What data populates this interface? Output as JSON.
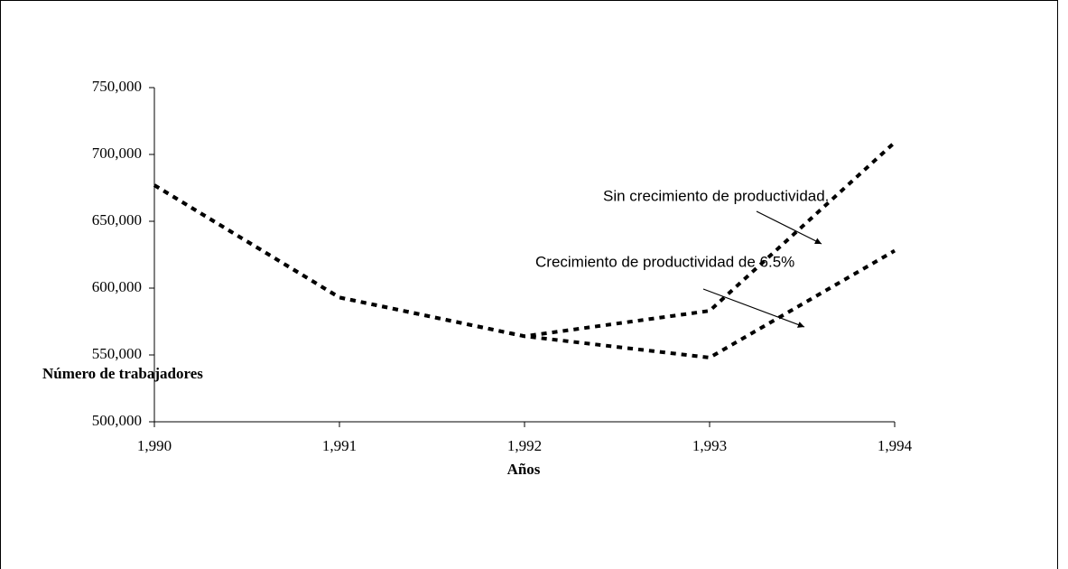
{
  "chart_data": {
    "type": "line",
    "x_label": "Años",
    "y_label": "Número de trabajadores",
    "x": [
      1990,
      1991,
      1992,
      1993,
      1994
    ],
    "series": [
      {
        "name": "Sin crecimiento  de  productividad.",
        "color": "#000000",
        "values": [
          677000,
          593000,
          564000,
          583000,
          709000
        ]
      },
      {
        "name": "Crecimiento de productividad de 6.5%",
        "color": "#000000",
        "values": [
          677000,
          593000,
          564000,
          548000,
          628000
        ]
      }
    ],
    "xlim": [
      1990,
      1994
    ],
    "xticks": [
      {
        "value": 1990,
        "label": "1,990"
      },
      {
        "value": 1991,
        "label": "1,991"
      },
      {
        "value": 1992,
        "label": "1,992"
      },
      {
        "value": 1993,
        "label": "1,993"
      },
      {
        "value": 1994,
        "label": "1,994"
      }
    ],
    "ylim": [
      500000,
      750000
    ],
    "yticks": [
      {
        "value": 500000,
        "label": "500,000"
      },
      {
        "value": 550000,
        "label": "550,000"
      },
      {
        "value": 600000,
        "label": "600,000"
      },
      {
        "value": 650000,
        "label": "650,000"
      },
      {
        "value": 700000,
        "label": "700,000"
      },
      {
        "value": 750000,
        "label": "750,000"
      }
    ],
    "grid": false
  }
}
